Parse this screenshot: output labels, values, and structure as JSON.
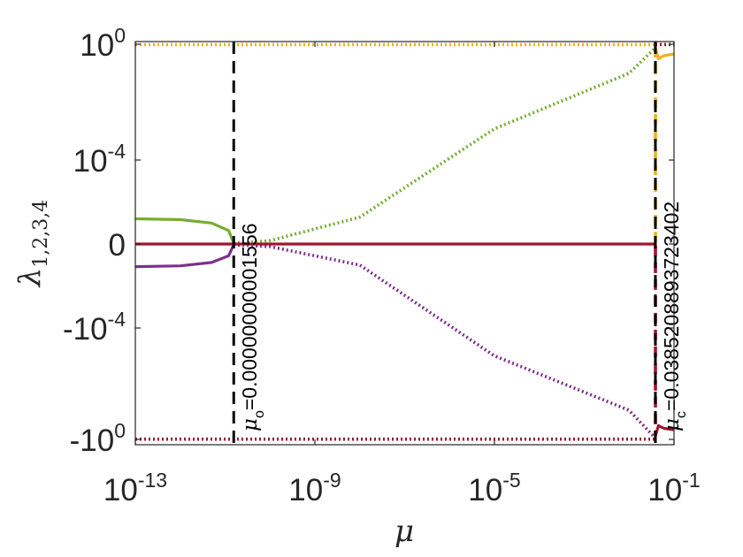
{
  "chart_data": {
    "type": "line",
    "title": "",
    "xlabel": "μ",
    "ylabel": {
      "symbol": "λ",
      "subscript": "1,2,3,4"
    },
    "x_scale": "log",
    "y_scale": "symlog",
    "xlim": [
      1e-13,
      0.1
    ],
    "ylim": [
      -1,
      1
    ],
    "grid": false,
    "legend": "none",
    "x_ticks": [
      {
        "value": 1e-13,
        "base": "10",
        "exp": "-13"
      },
      {
        "value": 1e-09,
        "base": "10",
        "exp": "-9"
      },
      {
        "value": 1e-05,
        "base": "10",
        "exp": "-5"
      },
      {
        "value": 0.1,
        "base": "10",
        "exp": "-1"
      }
    ],
    "y_ticks": [
      {
        "value": 1,
        "base": "10",
        "exp": "0"
      },
      {
        "value": 0.0001,
        "base": "10",
        "exp": "-4"
      },
      {
        "value": 0,
        "base": "0",
        "exp": ""
      },
      {
        "value": -0.0001,
        "base": "-10",
        "exp": "-4"
      },
      {
        "value": -1,
        "base": "-10",
        "exp": "0"
      }
    ],
    "series": [
      {
        "color": "#77AC30",
        "segments": [
          {
            "style": "solid",
            "points": [
              [
                1e-13,
                3e-05
              ],
              [
                1e-12,
                2.9e-05
              ],
              [
                5e-12,
                2.5e-05
              ],
              [
                1.2e-11,
                1.6e-05
              ],
              [
                1.556e-11,
                1e-06
              ]
            ]
          },
          {
            "style": "dotted",
            "points": [
              [
                1.556e-11,
                1e-06
              ],
              [
                1e-10,
                4e-06
              ],
              [
                1e-08,
                3.2e-05
              ],
              [
                1e-05,
                0.0012
              ],
              [
                0.01,
                0.1
              ],
              [
                0.0385,
                0.75
              ]
            ]
          }
        ]
      },
      {
        "color": "#7E2F8E",
        "segments": [
          {
            "style": "solid",
            "points": [
              [
                1e-13,
                -2.7e-05
              ],
              [
                1e-12,
                -2.6e-05
              ],
              [
                5e-12,
                -2.2e-05
              ],
              [
                1.2e-11,
                -1.4e-05
              ],
              [
                1.556e-11,
                -1e-06
              ]
            ]
          },
          {
            "style": "dotted",
            "points": [
              [
                1.556e-11,
                -1e-06
              ],
              [
                1e-10,
                -3e-06
              ],
              [
                1e-08,
                -2.5e-05
              ],
              [
                1e-05,
                -0.001
              ],
              [
                0.01,
                -0.09
              ],
              [
                0.0385,
                -0.9
              ]
            ]
          }
        ]
      },
      {
        "color": "#EDB120",
        "segments": [
          {
            "style": "dotted",
            "points": [
              [
                1e-13,
                0.97
              ],
              [
                0.0385,
                0.97
              ]
            ]
          },
          {
            "style": "dashed",
            "points": [
              [
                0.0385,
                2e-06
              ],
              [
                0.0385,
                0.75
              ]
            ]
          },
          {
            "style": "solid",
            "points": [
              [
                0.0385,
                0.75
              ],
              [
                0.045,
                0.32
              ],
              [
                0.06,
                0.4
              ],
              [
                0.1,
                0.46
              ]
            ]
          }
        ]
      },
      {
        "color": "#A2142F",
        "segments": [
          {
            "style": "solid",
            "points": [
              [
                1e-13,
                0
              ],
              [
                0.0385,
                0
              ]
            ]
          },
          {
            "style": "dashed",
            "points": [
              [
                0.0385,
                -2e-06
              ],
              [
                0.0385,
                -0.75
              ]
            ]
          },
          {
            "style": "solid",
            "points": [
              [
                0.0385,
                -0.75
              ],
              [
                0.045,
                -0.32
              ],
              [
                0.06,
                -0.4
              ],
              [
                0.1,
                -0.45
              ]
            ]
          },
          {
            "style": "dotted",
            "points": [
              [
                1e-13,
                -0.98
              ],
              [
                0.0385,
                -0.98
              ]
            ]
          },
          {
            "style": "dotted",
            "points": [
              [
                0.0385,
                0.98
              ],
              [
                0.1,
                0.98
              ]
            ]
          }
        ]
      }
    ],
    "vlines": [
      {
        "x": 1.556e-11,
        "color": "#000000",
        "style": "dashed",
        "label_prefix": "μ",
        "label_sub": "o",
        "label_value": "=0.00000000001556"
      },
      {
        "x": 0.0385208893723402,
        "color": "#000000",
        "style": "dashed",
        "label_prefix": "μ",
        "label_sub": "c",
        "label_value": "=0.0385208893723402"
      }
    ]
  }
}
